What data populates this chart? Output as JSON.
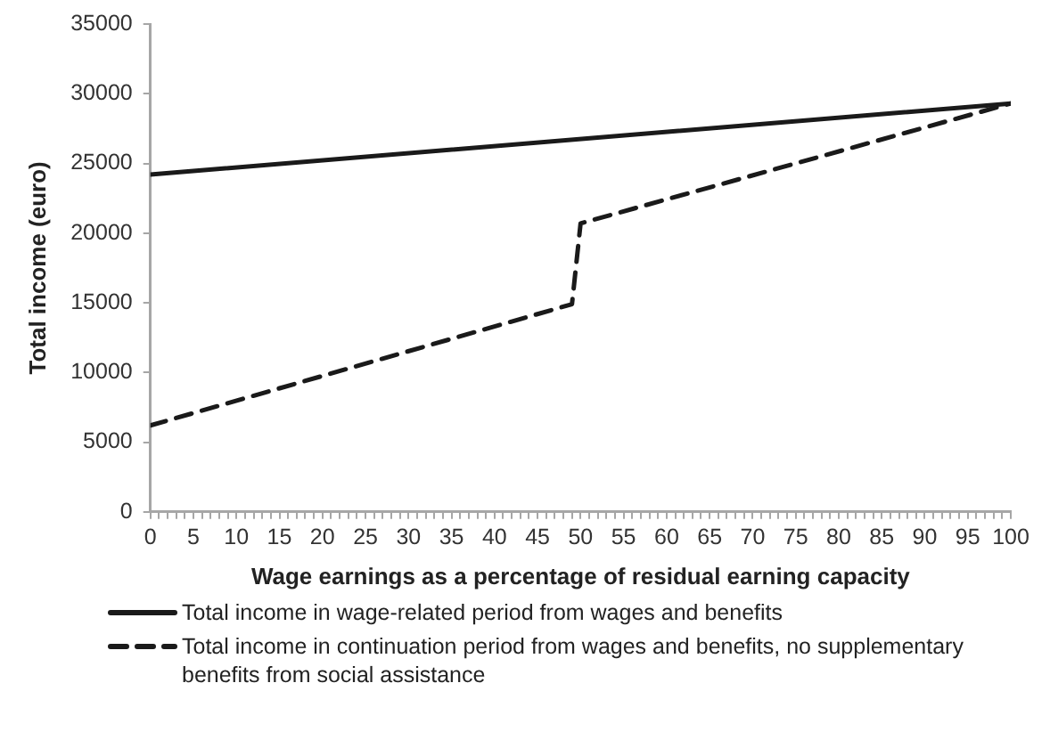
{
  "chart_data": {
    "type": "line",
    "xlabel": "Wage earnings as a percentage of residual earning capacity",
    "ylabel": "Total income (euro)",
    "xlim": [
      0,
      100
    ],
    "xticks": [
      0,
      {
        "value": 1,
        "label": null
      },
      {
        "value": 2,
        "label": null
      },
      {
        "value": 3,
        "label": null
      },
      {
        "value": 4,
        "label": null
      },
      5,
      {
        "value": 6,
        "label": null
      },
      {
        "value": 7,
        "label": null
      },
      {
        "value": 8,
        "label": null
      },
      {
        "value": 9,
        "label": null
      },
      10,
      {
        "value": 11,
        "label": null
      },
      {
        "value": 12,
        "label": null
      },
      {
        "value": 13,
        "label": null
      },
      {
        "value": 14,
        "label": null
      },
      15,
      {
        "value": 16,
        "label": null
      },
      {
        "value": 17,
        "label": null
      },
      {
        "value": 18,
        "label": null
      },
      {
        "value": 19,
        "label": null
      },
      20,
      {
        "value": 21,
        "label": null
      },
      {
        "value": 22,
        "label": null
      },
      {
        "value": 23,
        "label": null
      },
      {
        "value": 24,
        "label": null
      },
      25,
      {
        "value": 26,
        "label": null
      },
      {
        "value": 27,
        "label": null
      },
      {
        "value": 28,
        "label": null
      },
      {
        "value": 29,
        "label": null
      },
      30,
      {
        "value": 31,
        "label": null
      },
      {
        "value": 32,
        "label": null
      },
      {
        "value": 33,
        "label": null
      },
      {
        "value": 34,
        "label": null
      },
      35,
      {
        "value": 36,
        "label": null
      },
      {
        "value": 37,
        "label": null
      },
      {
        "value": 38,
        "label": null
      },
      {
        "value": 39,
        "label": null
      },
      40,
      {
        "value": 41,
        "label": null
      },
      {
        "value": 42,
        "label": null
      },
      {
        "value": 43,
        "label": null
      },
      {
        "value": 44,
        "label": null
      },
      45,
      {
        "value": 46,
        "label": null
      },
      {
        "value": 47,
        "label": null
      },
      {
        "value": 48,
        "label": null
      },
      {
        "value": 49,
        "label": null
      },
      50,
      {
        "value": 51,
        "label": null
      },
      {
        "value": 52,
        "label": null
      },
      {
        "value": 53,
        "label": null
      },
      {
        "value": 54,
        "label": null
      },
      55,
      {
        "value": 56,
        "label": null
      },
      {
        "value": 57,
        "label": null
      },
      {
        "value": 58,
        "label": null
      },
      {
        "value": 59,
        "label": null
      },
      60,
      {
        "value": 61,
        "label": null
      },
      {
        "value": 62,
        "label": null
      },
      {
        "value": 63,
        "label": null
      },
      {
        "value": 64,
        "label": null
      },
      65,
      {
        "value": 66,
        "label": null
      },
      {
        "value": 67,
        "label": null
      },
      {
        "value": 68,
        "label": null
      },
      {
        "value": 69,
        "label": null
      },
      70,
      {
        "value": 71,
        "label": null
      },
      {
        "value": 72,
        "label": null
      },
      {
        "value": 73,
        "label": null
      },
      {
        "value": 74,
        "label": null
      },
      75,
      {
        "value": 76,
        "label": null
      },
      {
        "value": 77,
        "label": null
      },
      {
        "value": 78,
        "label": null
      },
      {
        "value": 79,
        "label": null
      },
      80,
      {
        "value": 81,
        "label": null
      },
      {
        "value": 82,
        "label": null
      },
      {
        "value": 83,
        "label": null
      },
      {
        "value": 84,
        "label": null
      },
      85,
      {
        "value": 86,
        "label": null
      },
      {
        "value": 87,
        "label": null
      },
      {
        "value": 88,
        "label": null
      },
      {
        "value": 89,
        "label": null
      },
      90,
      {
        "value": 91,
        "label": null
      },
      {
        "value": 92,
        "label": null
      },
      {
        "value": 93,
        "label": null
      },
      {
        "value": 94,
        "label": null
      },
      95,
      {
        "value": 96,
        "label": null
      },
      {
        "value": 97,
        "label": null
      },
      {
        "value": 98,
        "label": null
      },
      {
        "value": 99,
        "label": null
      },
      100
    ],
    "ylim": [
      0,
      35000
    ],
    "yticks": [
      0,
      5000,
      10000,
      15000,
      20000,
      25000,
      30000,
      35000
    ],
    "grid": false,
    "legend": "bottom",
    "marker": "none",
    "series": [
      {
        "name": "Total income in wage-related period from wages and benefits",
        "color": "#1a1a1a",
        "line_style": "solid",
        "x": [
          0,
          100
        ],
        "values": [
          24200,
          29300
        ]
      },
      {
        "name": "Total income in continuation period from wages and benefits, no supplementary benefits from social assistance",
        "color": "#1a1a1a",
        "line_style": "dashed",
        "x": [
          0,
          49,
          50,
          100
        ],
        "values": [
          6200,
          14900,
          20700,
          29300
        ]
      }
    ]
  }
}
